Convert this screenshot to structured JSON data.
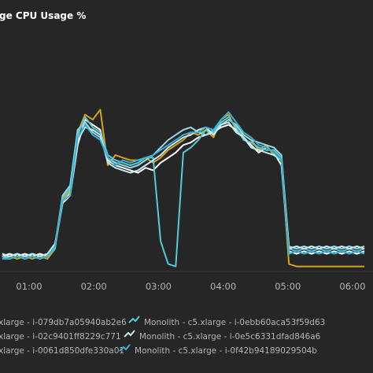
{
  "chart_data": {
    "type": "line",
    "title": "ge CPU Usage %",
    "xlabel": "",
    "ylabel": "",
    "x_ticks": [
      "01:00",
      "02:00",
      "03:00",
      "04:00",
      "05:00",
      "06:00"
    ],
    "grid": false,
    "legend_position": "bottom",
    "x": [
      "00:35",
      "00:42",
      "00:49",
      "00:56",
      "01:03",
      "01:10",
      "01:17",
      "01:24",
      "01:31",
      "01:38",
      "01:45",
      "01:52",
      "01:59",
      "02:06",
      "02:13",
      "02:20",
      "02:27",
      "02:34",
      "02:41",
      "02:48",
      "02:55",
      "03:02",
      "03:09",
      "03:16",
      "03:23",
      "03:30",
      "03:37",
      "03:44",
      "03:51",
      "03:58",
      "04:05",
      "04:12",
      "04:19",
      "04:26",
      "04:33",
      "04:40",
      "04:47",
      "04:54",
      "05:01",
      "05:08",
      "05:15",
      "05:22",
      "05:29",
      "05:36",
      "05:43",
      "05:50",
      "05:57",
      "06:04",
      "06:11"
    ],
    "series": [
      {
        "name": "xlarge - i-079db7a05940ab2e6",
        "color": "#d6a11d",
        "values": [
          6,
          6,
          5,
          6,
          5,
          6,
          5,
          9,
          28,
          32,
          55,
          62,
          60,
          64,
          42,
          46,
          45,
          44,
          44,
          45,
          43,
          45,
          48,
          50,
          52,
          55,
          54,
          56,
          53,
          60,
          62,
          56,
          54,
          52,
          48,
          50,
          46,
          44,
          3,
          2,
          2,
          2,
          2,
          2,
          2,
          2,
          2,
          2,
          2
        ]
      },
      {
        "name": "xlarge - i-02c9401ff8229c771",
        "color": "#ffffff",
        "values": [
          6,
          7,
          6,
          7,
          6,
          7,
          6,
          10,
          27,
          30,
          50,
          60,
          58,
          56,
          44,
          42,
          41,
          40,
          39,
          41,
          40,
          43,
          45,
          47,
          50,
          51,
          53,
          54,
          55,
          57,
          58,
          56,
          53,
          50,
          47,
          49,
          47,
          42,
          8,
          7,
          8,
          7,
          8,
          7,
          8,
          7,
          8,
          7,
          8
        ]
      },
      {
        "name": "xlarge - i-0061d850dfe330a01",
        "color": "#9ad7e5",
        "values": [
          5,
          6,
          7,
          6,
          7,
          6,
          7,
          10,
          30,
          34,
          56,
          59,
          55,
          53,
          45,
          43,
          42,
          41,
          42,
          44,
          46,
          49,
          52,
          54,
          56,
          57,
          55,
          54,
          56,
          58,
          60,
          58,
          54,
          52,
          51,
          50,
          49,
          46,
          10,
          9,
          10,
          9,
          10,
          9,
          10,
          9,
          10,
          9,
          10
        ]
      },
      {
        "name": "Monolith - c5.xlarge - i-0ebb60aca53f59d63",
        "color": "#56c9d9",
        "values": [
          6,
          5,
          6,
          5,
          6,
          5,
          6,
          9,
          29,
          33,
          54,
          61,
          57,
          55,
          46,
          44,
          43,
          42,
          43,
          45,
          45,
          12,
          3,
          2,
          47,
          49,
          52,
          56,
          55,
          59,
          61,
          57,
          52,
          51,
          49,
          48,
          48,
          45,
          9,
          8,
          9,
          8,
          9,
          8,
          9,
          8,
          9,
          8,
          9
        ]
      },
      {
        "name": "Monolith - c5.xlarge - i-0e5c6331dfad846a6",
        "color": "#c4edf3",
        "values": [
          7,
          6,
          7,
          6,
          7,
          6,
          7,
          11,
          27,
          31,
          52,
          57,
          56,
          54,
          43,
          41,
          40,
          39,
          40,
          42,
          44,
          46,
          49,
          51,
          53,
          54,
          56,
          57,
          54,
          58,
          59,
          55,
          53,
          49,
          48,
          47,
          46,
          44,
          9,
          10,
          9,
          10,
          9,
          10,
          9,
          10,
          9,
          10,
          9
        ]
      },
      {
        "name": "Monolith - c5.xlarge - i-0f42b94189029504b",
        "color": "#3ab0d0",
        "values": [
          5,
          5,
          6,
          5,
          6,
          5,
          6,
          10,
          28,
          30,
          53,
          58,
          54,
          52,
          45,
          42,
          44,
          43,
          44,
          45,
          46,
          48,
          50,
          52,
          54,
          55,
          55,
          57,
          56,
          60,
          63,
          59,
          55,
          53,
          50,
          49,
          47,
          44,
          7,
          8,
          7,
          8,
          7,
          8,
          7,
          8,
          7,
          8,
          7
        ]
      }
    ],
    "ylim": [
      0,
      70
    ]
  }
}
